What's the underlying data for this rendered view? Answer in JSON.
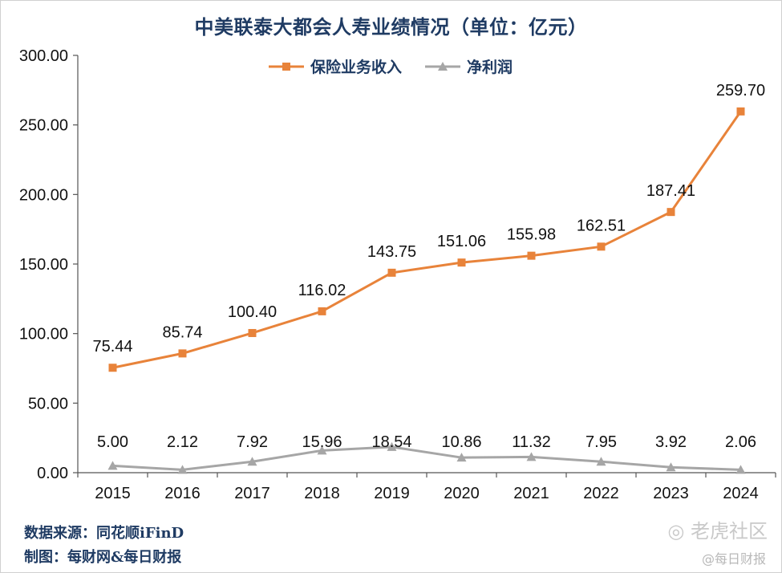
{
  "chart_data": {
    "type": "line",
    "title": "中美联泰大都会人寿业绩情况（单位：亿元）",
    "categories": [
      "2015",
      "2016",
      "2017",
      "2018",
      "2019",
      "2020",
      "2021",
      "2022",
      "2023",
      "2024"
    ],
    "series": [
      {
        "name": "保险业务收入",
        "color": "#e8833a",
        "marker": "square",
        "values": [
          75.44,
          85.74,
          100.4,
          116.02,
          143.75,
          151.06,
          155.98,
          162.51,
          187.41,
          259.7
        ],
        "labels": [
          "75.44",
          "85.74",
          "100.40",
          "116.02",
          "143.75",
          "151.06",
          "155.98",
          "162.51",
          "187.41",
          "259.70"
        ]
      },
      {
        "name": "净利润",
        "color": "#a6a6a6",
        "marker": "triangle",
        "values": [
          5.0,
          2.12,
          7.92,
          15.96,
          18.54,
          10.86,
          11.32,
          7.95,
          3.92,
          2.06
        ],
        "labels": [
          "5.00",
          "2.12",
          "7.92",
          "15.96",
          "18.54",
          "10.86",
          "11.32",
          "7.95",
          "3.92",
          "2.06"
        ]
      }
    ],
    "ylim": [
      0,
      300
    ],
    "yticks": [
      "0.00",
      "50.00",
      "100.00",
      "150.00",
      "200.00",
      "250.00",
      "300.00"
    ],
    "xlabel": "",
    "ylabel": "",
    "legend_position": "top-center",
    "grid": false
  },
  "footer": {
    "source": "数据来源：同花顺iFinD",
    "made_by": "制图：每财网&每日财报"
  },
  "watermark": {
    "community": "老虎社区",
    "account": "@每日财报"
  }
}
